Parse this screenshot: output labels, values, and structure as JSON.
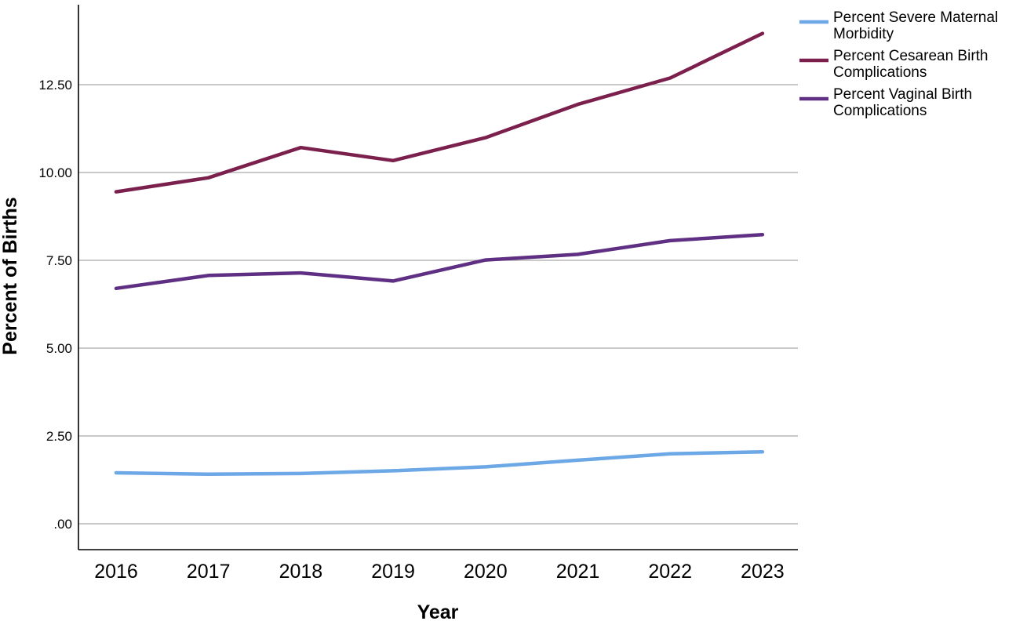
{
  "chart_data": {
    "type": "line",
    "xlabel": "Year",
    "ylabel": "Percent of Births",
    "categories": [
      "2016",
      "2017",
      "2018",
      "2019",
      "2020",
      "2021",
      "2022",
      "2023"
    ],
    "ylim": [
      0,
      14.2
    ],
    "yticks": [
      {
        "value": 0,
        "label": ".00"
      },
      {
        "value": 2.5,
        "label": "2.50"
      },
      {
        "value": 5,
        "label": "5.00"
      },
      {
        "value": 7.5,
        "label": "7.50"
      },
      {
        "value": 10,
        "label": "10.00"
      },
      {
        "value": 12.5,
        "label": "12.50"
      }
    ],
    "grid": true,
    "legend_position": "top-right",
    "series": [
      {
        "name": "Percent Severe Maternal Morbidity",
        "color": "#6ba8e5",
        "values": [
          1.45,
          1.41,
          1.43,
          1.51,
          1.62,
          1.81,
          1.99,
          2.05
        ]
      },
      {
        "name": "Percent Cesarean Birth Complications",
        "color": "#7b1f4d",
        "values": [
          9.45,
          9.85,
          10.71,
          10.34,
          10.99,
          11.94,
          12.69,
          13.96
        ]
      },
      {
        "name": "Percent Vaginal Birth Complications",
        "color": "#5e2f82",
        "values": [
          6.7,
          7.07,
          7.14,
          6.91,
          7.51,
          7.67,
          8.06,
          8.23
        ]
      }
    ],
    "legend_lines": [
      [
        "Percent Severe Maternal",
        "Morbidity"
      ],
      [
        "Percent Cesarean Birth",
        "Complications"
      ],
      [
        "Percent Vaginal Birth",
        "Complications"
      ]
    ]
  }
}
